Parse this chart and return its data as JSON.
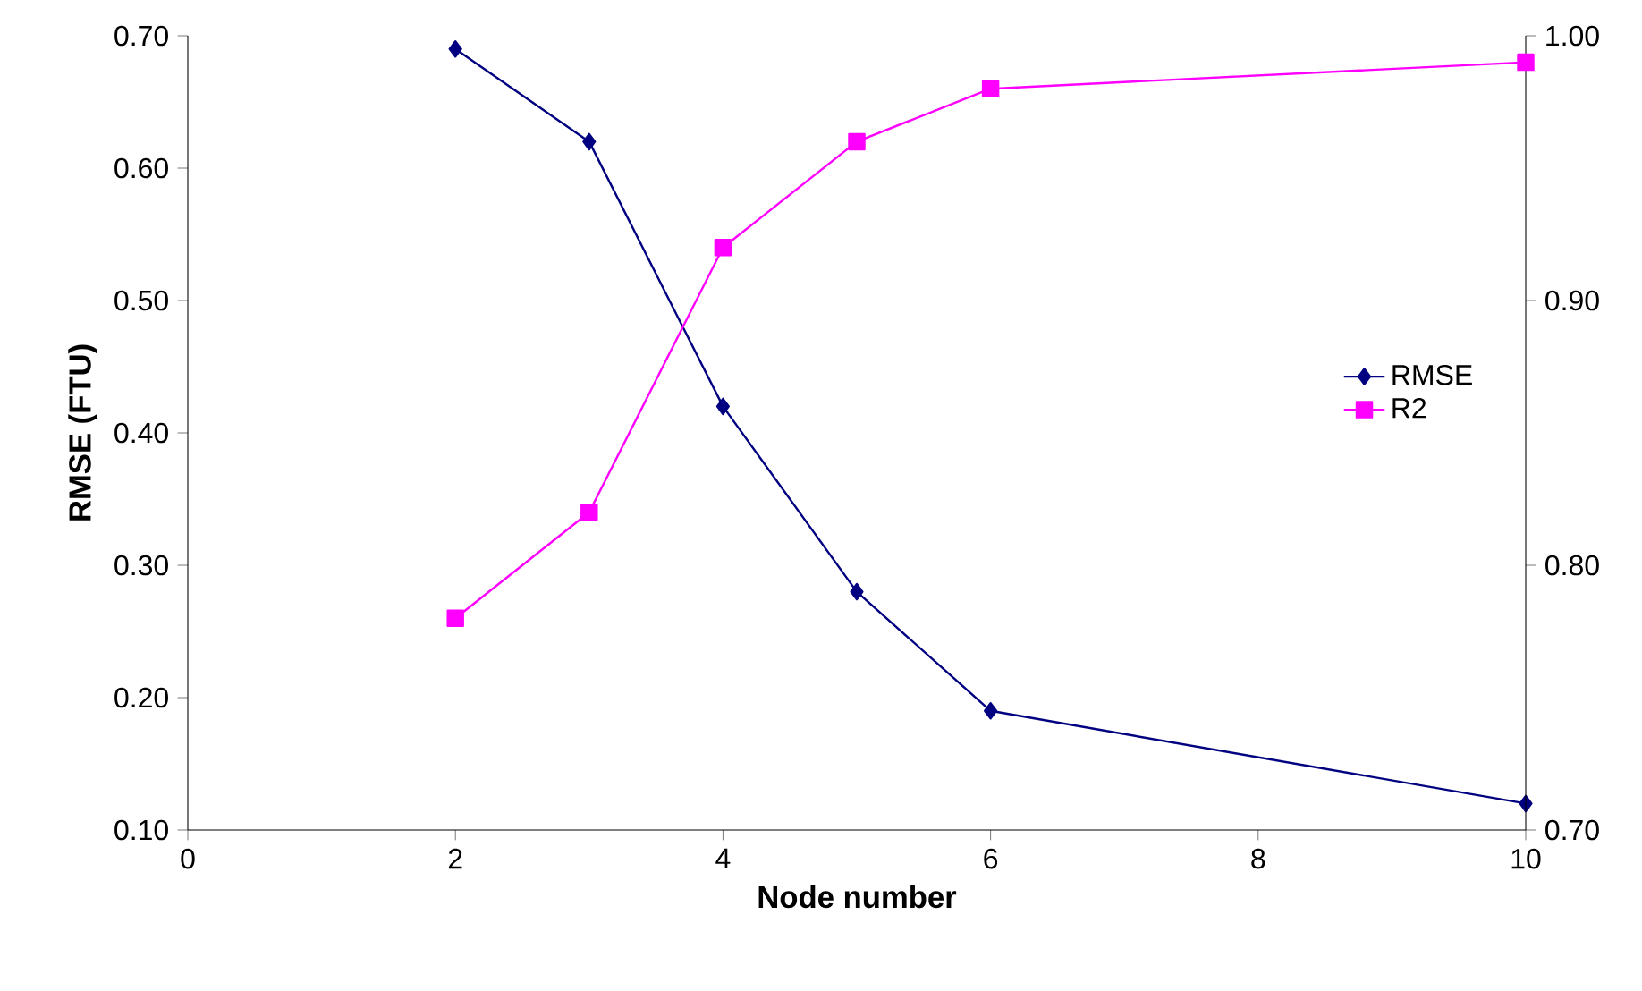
{
  "chart_data": {
    "type": "line",
    "xlabel": "Node number",
    "ylabel": "RMSE (FTU)",
    "x": [
      2,
      3,
      4,
      5,
      6,
      10
    ],
    "series": [
      {
        "name": "RMSE",
        "color": "#000080",
        "marker": "diamond",
        "values": [
          0.69,
          0.62,
          0.42,
          0.28,
          0.19,
          0.12
        ]
      },
      {
        "name": "R2",
        "color": "#ff00ff",
        "marker": "square",
        "axis": "y2",
        "values": [
          0.78,
          0.82,
          0.92,
          0.96,
          0.98,
          0.99
        ]
      }
    ],
    "xlim": [
      0,
      10
    ],
    "xticks": [
      0,
      2,
      4,
      6,
      8,
      10
    ],
    "ylim": [
      0.1,
      0.7
    ],
    "yticks": [
      {
        "value": 0.1,
        "label": "0.10"
      },
      {
        "value": 0.2,
        "label": "0.20"
      },
      {
        "value": 0.3,
        "label": "0.30"
      },
      {
        "value": 0.4,
        "label": "0.40"
      },
      {
        "value": 0.5,
        "label": "0.50"
      },
      {
        "value": 0.6,
        "label": "0.60"
      },
      {
        "value": 0.7,
        "label": "0.70"
      }
    ],
    "y2lim": [
      0.7,
      1.0
    ],
    "y2ticks": [
      {
        "value": 0.7,
        "label": "0.70"
      },
      {
        "value": 0.8,
        "label": "0.80"
      },
      {
        "value": 0.9,
        "label": "0.90"
      },
      {
        "value": 1.0,
        "label": "1.00"
      }
    ],
    "legend": "right",
    "grid": false
  }
}
